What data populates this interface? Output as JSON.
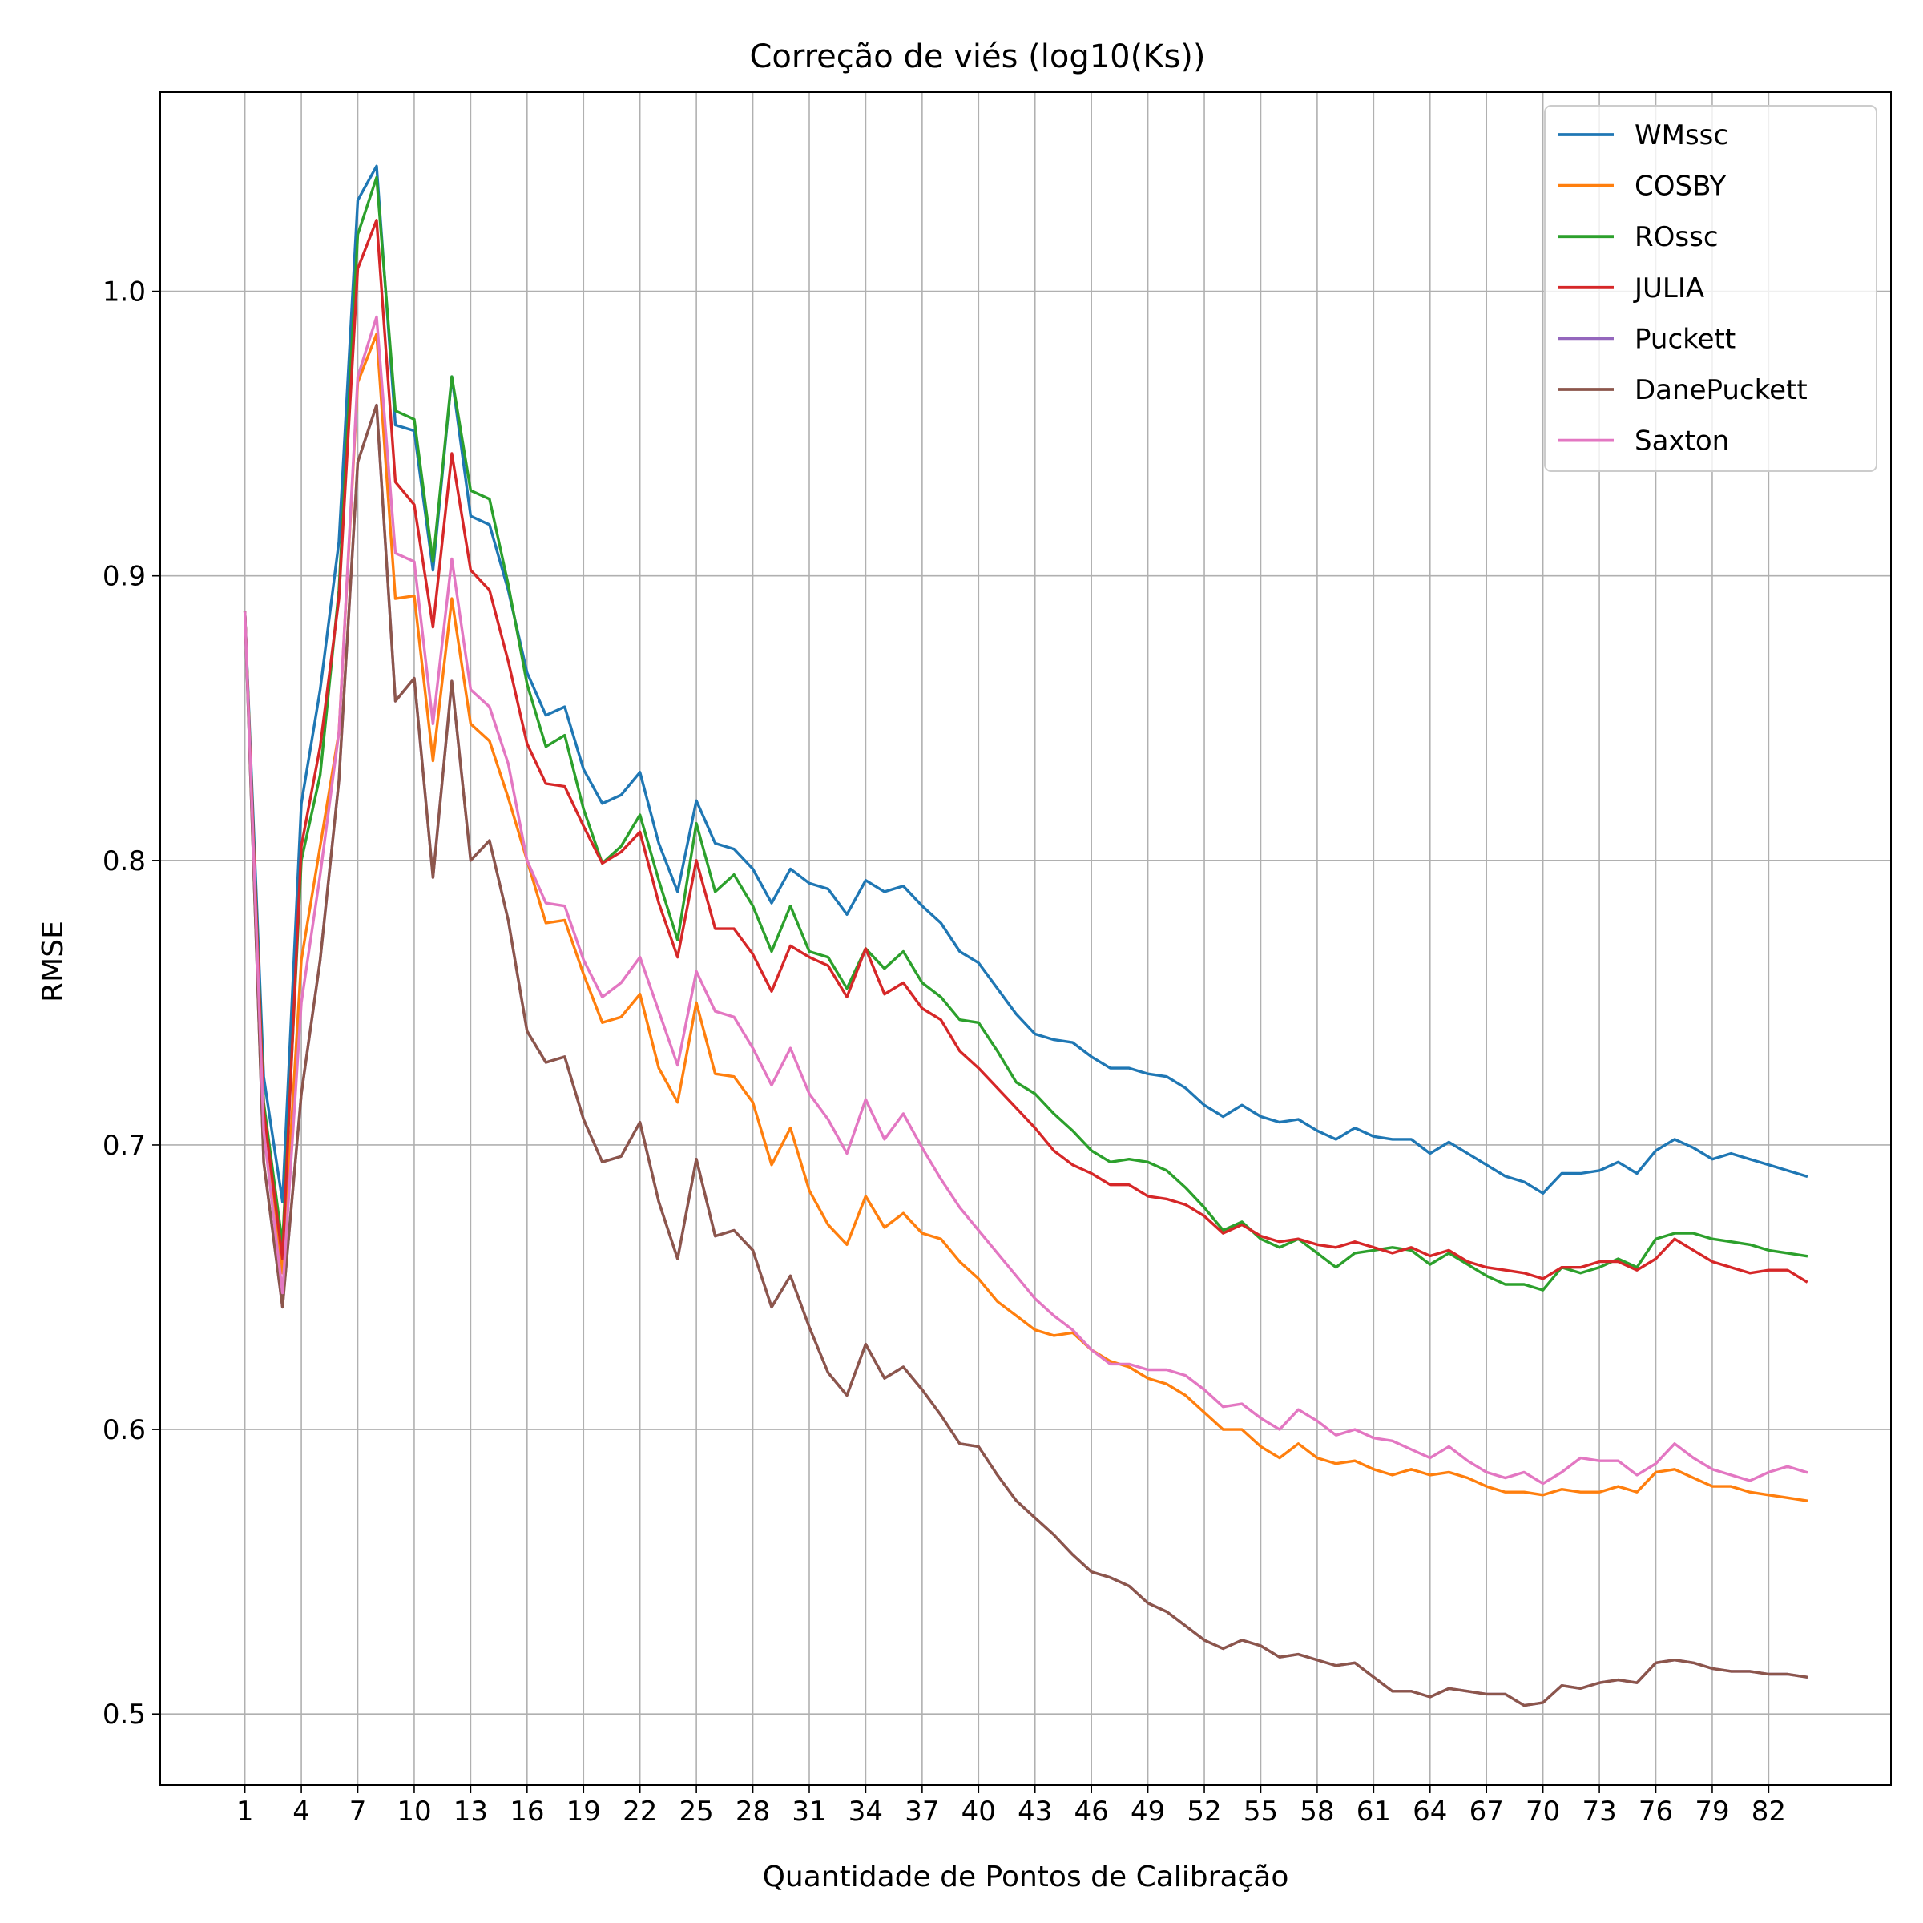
{
  "chart_data": {
    "type": "line",
    "title": "Correção de viés (log10(Ks))",
    "xlabel": "Quantidade de Pontos de Calibração",
    "ylabel": "RMSE",
    "xlim": [
      -3.5,
      88.5
    ],
    "ylim": [
      0.475,
      1.07
    ],
    "grid": true,
    "legend_position": "top-right",
    "xticks": [
      1,
      4,
      7,
      10,
      13,
      16,
      19,
      22,
      25,
      28,
      31,
      34,
      37,
      40,
      43,
      46,
      49,
      52,
      55,
      58,
      61,
      64,
      67,
      70,
      73,
      76,
      79,
      82
    ],
    "yticks": [
      0.5,
      0.6,
      0.7,
      0.8,
      0.9,
      1.0
    ],
    "ytick_labels": [
      "0.5",
      "0.6",
      "0.7",
      "0.8",
      "0.9",
      "1.0"
    ],
    "x_start": 1,
    "series": [
      {
        "name": "WMssc",
        "color": "#1f77b4",
        "values": [
          0.887,
          0.724,
          0.68,
          0.82,
          0.86,
          0.912,
          1.032,
          1.044,
          0.953,
          0.951,
          0.902,
          0.97,
          0.921,
          0.918,
          0.895,
          0.866,
          0.851,
          0.854,
          0.832,
          0.82,
          0.823,
          0.831,
          0.806,
          0.789,
          0.821,
          0.806,
          0.804,
          0.797,
          0.785,
          0.797,
          0.792,
          0.79,
          0.781,
          0.793,
          0.789,
          0.791,
          0.784,
          0.778,
          0.768,
          0.764,
          0.755,
          0.746,
          0.739,
          0.737,
          0.736,
          0.731,
          0.727,
          0.727,
          0.725,
          0.724,
          0.72,
          0.714,
          0.71,
          0.714,
          0.71,
          0.708,
          0.709,
          0.705,
          0.702,
          0.706,
          0.703,
          0.702,
          0.702,
          0.697,
          0.701,
          0.697,
          0.693,
          0.689,
          0.687,
          0.683,
          0.69,
          0.69,
          0.691,
          0.694,
          0.69,
          0.698,
          0.702,
          0.699,
          0.695,
          0.697,
          0.695,
          0.693,
          0.691,
          0.689
        ]
      },
      {
        "name": "COSBY",
        "color": "#ff7f0e",
        "values": [
          0.887,
          0.71,
          0.655,
          0.765,
          0.805,
          0.845,
          0.968,
          0.985,
          0.892,
          0.893,
          0.835,
          0.892,
          0.848,
          0.842,
          0.822,
          0.8,
          0.778,
          0.779,
          0.76,
          0.743,
          0.745,
          0.753,
          0.727,
          0.715,
          0.75,
          0.725,
          0.724,
          0.715,
          0.693,
          0.706,
          0.684,
          0.672,
          0.665,
          0.682,
          0.671,
          0.676,
          0.669,
          0.667,
          0.659,
          0.653,
          0.645,
          0.64,
          0.635,
          0.633,
          0.634,
          0.628,
          0.624,
          0.622,
          0.618,
          0.616,
          0.612,
          0.606,
          0.6,
          0.6,
          0.594,
          0.59,
          0.595,
          0.59,
          0.588,
          0.589,
          0.586,
          0.584,
          0.586,
          0.584,
          0.585,
          0.583,
          0.58,
          0.578,
          0.578,
          0.577,
          0.579,
          0.578,
          0.578,
          0.58,
          0.578,
          0.585,
          0.586,
          0.583,
          0.58,
          0.58,
          0.578,
          0.577,
          0.576,
          0.575
        ]
      },
      {
        "name": "ROssc",
        "color": "#2ca02c",
        "values": [
          0.887,
          0.715,
          0.665,
          0.8,
          0.83,
          0.895,
          1.02,
          1.04,
          0.958,
          0.955,
          0.905,
          0.97,
          0.93,
          0.927,
          0.897,
          0.862,
          0.84,
          0.844,
          0.818,
          0.799,
          0.805,
          0.816,
          0.793,
          0.772,
          0.813,
          0.789,
          0.795,
          0.784,
          0.768,
          0.784,
          0.768,
          0.766,
          0.755,
          0.769,
          0.762,
          0.768,
          0.757,
          0.752,
          0.744,
          0.743,
          0.733,
          0.722,
          0.718,
          0.711,
          0.705,
          0.698,
          0.694,
          0.695,
          0.694,
          0.691,
          0.685,
          0.678,
          0.67,
          0.673,
          0.667,
          0.664,
          0.667,
          0.662,
          0.657,
          0.662,
          0.663,
          0.664,
          0.663,
          0.658,
          0.662,
          0.658,
          0.654,
          0.651,
          0.651,
          0.649,
          0.657,
          0.655,
          0.657,
          0.66,
          0.657,
          0.667,
          0.669,
          0.669,
          0.667,
          0.666,
          0.665,
          0.663,
          0.662,
          0.661
        ]
      },
      {
        "name": "JULIA",
        "color": "#d62728",
        "values": [
          0.887,
          0.712,
          0.66,
          0.805,
          0.84,
          0.892,
          1.008,
          1.025,
          0.933,
          0.925,
          0.882,
          0.943,
          0.902,
          0.895,
          0.87,
          0.841,
          0.827,
          0.826,
          0.812,
          0.799,
          0.803,
          0.81,
          0.785,
          0.766,
          0.8,
          0.776,
          0.776,
          0.767,
          0.754,
          0.77,
          0.766,
          0.763,
          0.752,
          0.769,
          0.753,
          0.757,
          0.748,
          0.744,
          0.733,
          0.727,
          0.72,
          0.713,
          0.706,
          0.698,
          0.693,
          0.69,
          0.686,
          0.686,
          0.682,
          0.681,
          0.679,
          0.675,
          0.669,
          0.672,
          0.668,
          0.666,
          0.667,
          0.665,
          0.664,
          0.666,
          0.664,
          0.662,
          0.664,
          0.661,
          0.663,
          0.659,
          0.657,
          0.656,
          0.655,
          0.653,
          0.657,
          0.657,
          0.659,
          0.659,
          0.656,
          0.66,
          0.667,
          0.663,
          0.659,
          0.657,
          0.655,
          0.656,
          0.656,
          0.652
        ]
      },
      {
        "name": "Puckett",
        "color": "#9467bd",
        "values": [
          0.887,
          0.694,
          0.643,
          0.718,
          0.765,
          0.828,
          0.94,
          0.96,
          0.856,
          0.864,
          0.794,
          0.863,
          0.8,
          0.807,
          0.779,
          0.74,
          0.729,
          0.731,
          0.709,
          0.694,
          0.696,
          0.708,
          0.68,
          0.66,
          0.695,
          0.668,
          0.67,
          0.663,
          0.643,
          0.654,
          0.636,
          0.62,
          0.612,
          0.63,
          0.618,
          0.622,
          0.614,
          0.605,
          0.595,
          0.594,
          0.584,
          0.575,
          0.569,
          0.563,
          0.556,
          0.55,
          0.548,
          0.545,
          0.539,
          0.536,
          0.531,
          0.526,
          0.523,
          0.526,
          0.524,
          0.52,
          0.521,
          0.519,
          0.517,
          0.518,
          0.513,
          0.508,
          0.508,
          0.506,
          0.509,
          0.508,
          0.507,
          0.507,
          0.503,
          0.504,
          0.51,
          0.509,
          0.511,
          0.512,
          0.511,
          0.518,
          0.519,
          0.518,
          0.516,
          0.515,
          0.515,
          0.514,
          0.514,
          0.513
        ]
      },
      {
        "name": "DanePuckett",
        "color": "#8c564b",
        "values": [
          0.887,
          0.694,
          0.643,
          0.718,
          0.765,
          0.828,
          0.94,
          0.96,
          0.856,
          0.864,
          0.794,
          0.863,
          0.8,
          0.807,
          0.779,
          0.74,
          0.729,
          0.731,
          0.709,
          0.694,
          0.696,
          0.708,
          0.68,
          0.66,
          0.695,
          0.668,
          0.67,
          0.663,
          0.643,
          0.654,
          0.636,
          0.62,
          0.612,
          0.63,
          0.618,
          0.622,
          0.614,
          0.605,
          0.595,
          0.594,
          0.584,
          0.575,
          0.569,
          0.563,
          0.556,
          0.55,
          0.548,
          0.545,
          0.539,
          0.536,
          0.531,
          0.526,
          0.523,
          0.526,
          0.524,
          0.52,
          0.521,
          0.519,
          0.517,
          0.518,
          0.513,
          0.508,
          0.508,
          0.506,
          0.509,
          0.508,
          0.507,
          0.507,
          0.503,
          0.504,
          0.51,
          0.509,
          0.511,
          0.512,
          0.511,
          0.518,
          0.519,
          0.518,
          0.516,
          0.515,
          0.515,
          0.514,
          0.514,
          0.513
        ]
      },
      {
        "name": "Saxton",
        "color": "#e377c2",
        "values": [
          0.887,
          0.705,
          0.648,
          0.75,
          0.795,
          0.845,
          0.97,
          0.991,
          0.908,
          0.905,
          0.848,
          0.906,
          0.86,
          0.854,
          0.834,
          0.8,
          0.785,
          0.784,
          0.765,
          0.752,
          0.757,
          0.766,
          0.747,
          0.728,
          0.761,
          0.747,
          0.745,
          0.734,
          0.721,
          0.734,
          0.718,
          0.709,
          0.697,
          0.716,
          0.702,
          0.711,
          0.699,
          0.688,
          0.678,
          0.67,
          0.662,
          0.654,
          0.646,
          0.64,
          0.635,
          0.628,
          0.623,
          0.623,
          0.621,
          0.621,
          0.619,
          0.614,
          0.608,
          0.609,
          0.604,
          0.6,
          0.607,
          0.603,
          0.598,
          0.6,
          0.597,
          0.596,
          0.593,
          0.59,
          0.594,
          0.589,
          0.585,
          0.583,
          0.585,
          0.581,
          0.585,
          0.59,
          0.589,
          0.589,
          0.584,
          0.588,
          0.595,
          0.59,
          0.586,
          0.584,
          0.582,
          0.585,
          0.587,
          0.585
        ]
      }
    ]
  }
}
